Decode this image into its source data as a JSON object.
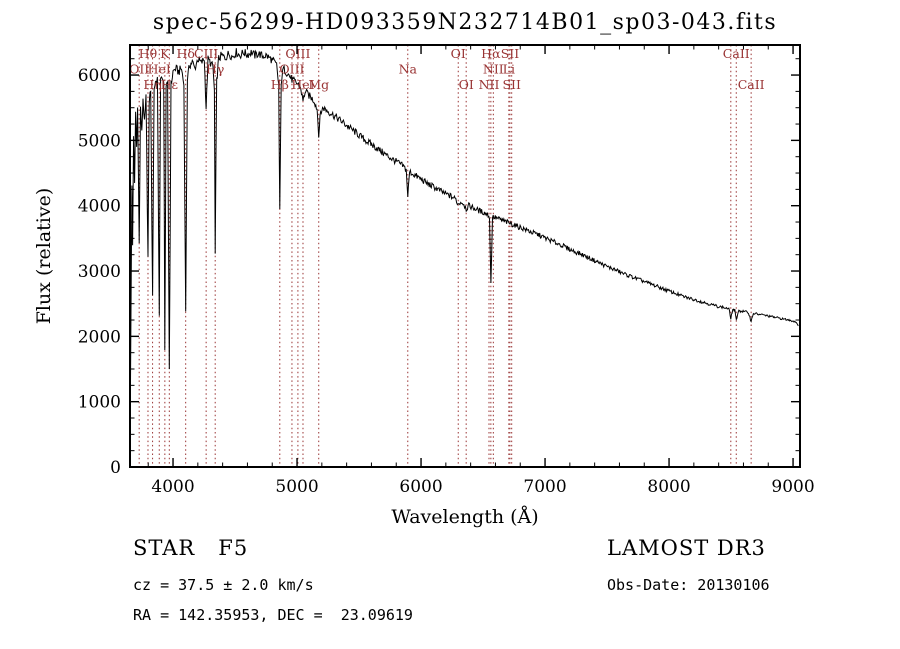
{
  "chart_data": {
    "type": "line",
    "title": "spec-56299-HD093359N232714B01_sp03-043.fits",
    "xlabel": "Wavelength (Å)",
    "ylabel": "Flux (relative)",
    "xlim": [
      3653,
      9056
    ],
    "ylim": [
      0,
      6460
    ],
    "xticks": [
      4000,
      5000,
      6000,
      7000,
      8000,
      9000
    ],
    "yticks": [
      0,
      1000,
      2000,
      3000,
      4000,
      5000,
      6000
    ],
    "grid": false,
    "line_color": "#000000",
    "feature_color": "#993333",
    "spectral_lines": [
      {
        "wl": 3727,
        "label": "OII",
        "row": 1
      },
      {
        "wl": 3798,
        "label": "Hθ",
        "row": 0
      },
      {
        "wl": 3835,
        "label": "Hη",
        "row": 2
      },
      {
        "wl": 3889,
        "label": "HeI",
        "row": 1
      },
      {
        "wl": 3934,
        "label": "K",
        "row": 0
      },
      {
        "wl": 3970,
        "label": "Hε",
        "row": 2
      },
      {
        "wl": 4102,
        "label": "Hδ",
        "row": 0
      },
      {
        "wl": 4267,
        "label": "CIII",
        "row": 0
      },
      {
        "wl": 4340,
        "label": "Hγ",
        "row": 1
      },
      {
        "wl": 4861,
        "label": "Hβ",
        "row": 2
      },
      {
        "wl": 4959,
        "label": "OIII",
        "row": 1
      },
      {
        "wl": 5007,
        "label": "OIII",
        "row": 0
      },
      {
        "wl": 5048,
        "label": "HeI",
        "row": 2
      },
      {
        "wl": 5175,
        "label": "Mg",
        "row": 2
      },
      {
        "wl": 5893,
        "label": "Na",
        "row": 1
      },
      {
        "wl": 6300,
        "label": "OI",
        "row": 0
      },
      {
        "wl": 6364,
        "label": "OI",
        "row": 2
      },
      {
        "wl": 6548,
        "label": "NII",
        "row": 2
      },
      {
        "wl": 6563,
        "label": "Hα",
        "row": 0
      },
      {
        "wl": 6583,
        "label": "NII",
        "row": 1
      },
      {
        "wl": 6708,
        "label": "Li",
        "row": 1
      },
      {
        "wl": 6717,
        "label": "SII",
        "row": 0
      },
      {
        "wl": 6731,
        "label": "SII",
        "row": 2
      },
      {
        "wl": 8498,
        "label": "",
        "row": 0
      },
      {
        "wl": 8542,
        "label": "CaII",
        "row": 0
      },
      {
        "wl": 8662,
        "label": "CaII",
        "row": 2
      }
    ],
    "points": [
      [
        3655,
        700
      ],
      [
        3662,
        2600
      ],
      [
        3668,
        4300
      ],
      [
        3674,
        3400
      ],
      [
        3682,
        5100
      ],
      [
        3690,
        4300
      ],
      [
        3698,
        5400
      ],
      [
        3706,
        4900
      ],
      [
        3714,
        5500
      ],
      [
        3727,
        3500
      ],
      [
        3738,
        5500
      ],
      [
        3748,
        5100
      ],
      [
        3758,
        5650
      ],
      [
        3770,
        5250
      ],
      [
        3782,
        5650
      ],
      [
        3798,
        3200
      ],
      [
        3808,
        5600
      ],
      [
        3820,
        5800
      ],
      [
        3835,
        2650
      ],
      [
        3847,
        5800
      ],
      [
        3860,
        5900
      ],
      [
        3874,
        5950
      ],
      [
        3889,
        2350
      ],
      [
        3900,
        5900
      ],
      [
        3914,
        6000
      ],
      [
        3925,
        5850
      ],
      [
        3934,
        1850
      ],
      [
        3944,
        5750
      ],
      [
        3956,
        5900
      ],
      [
        3970,
        1500
      ],
      [
        3984,
        5850
      ],
      [
        4000,
        6050
      ],
      [
        4020,
        6100
      ],
      [
        4045,
        6050
      ],
      [
        4068,
        6100
      ],
      [
        4088,
        5850
      ],
      [
        4102,
        2350
      ],
      [
        4116,
        5950
      ],
      [
        4134,
        6150
      ],
      [
        4155,
        6200
      ],
      [
        4175,
        6100
      ],
      [
        4200,
        6250
      ],
      [
        4228,
        6180
      ],
      [
        4252,
        6250
      ],
      [
        4267,
        5500
      ],
      [
        4282,
        6240
      ],
      [
        4302,
        6190
      ],
      [
        4322,
        6120
      ],
      [
        4334,
        5750
      ],
      [
        4340,
        3250
      ],
      [
        4352,
        5900
      ],
      [
        4368,
        6250
      ],
      [
        4392,
        6300
      ],
      [
        4420,
        6260
      ],
      [
        4450,
        6330
      ],
      [
        4480,
        6280
      ],
      [
        4510,
        6350
      ],
      [
        4540,
        6300
      ],
      [
        4570,
        6350
      ],
      [
        4600,
        6310
      ],
      [
        4630,
        6350
      ],
      [
        4660,
        6300
      ],
      [
        4690,
        6330
      ],
      [
        4720,
        6290
      ],
      [
        4750,
        6300
      ],
      [
        4780,
        6260
      ],
      [
        4810,
        6210
      ],
      [
        4835,
        6150
      ],
      [
        4852,
        5850
      ],
      [
        4861,
        3900
      ],
      [
        4872,
        5900
      ],
      [
        4890,
        6100
      ],
      [
        4912,
        6050
      ],
      [
        4935,
        6000
      ],
      [
        4959,
        5930
      ],
      [
        4980,
        5900
      ],
      [
        5007,
        5860
      ],
      [
        5030,
        5800
      ],
      [
        5048,
        5600
      ],
      [
        5065,
        5750
      ],
      [
        5090,
        5700
      ],
      [
        5115,
        5650
      ],
      [
        5140,
        5600
      ],
      [
        5162,
        5480
      ],
      [
        5175,
        5100
      ],
      [
        5190,
        5430
      ],
      [
        5212,
        5500
      ],
      [
        5240,
        5460
      ],
      [
        5270,
        5420
      ],
      [
        5305,
        5370
      ],
      [
        5340,
        5320
      ],
      [
        5380,
        5260
      ],
      [
        5420,
        5200
      ],
      [
        5460,
        5140
      ],
      [
        5500,
        5080
      ],
      [
        5545,
        5010
      ],
      [
        5590,
        4950
      ],
      [
        5635,
        4890
      ],
      [
        5680,
        4830
      ],
      [
        5725,
        4770
      ],
      [
        5770,
        4710
      ],
      [
        5815,
        4660
      ],
      [
        5858,
        4600
      ],
      [
        5880,
        4550
      ],
      [
        5893,
        4150
      ],
      [
        5908,
        4520
      ],
      [
        5940,
        4480
      ],
      [
        5980,
        4430
      ],
      [
        6020,
        4380
      ],
      [
        6060,
        4330
      ],
      [
        6100,
        4290
      ],
      [
        6145,
        4240
      ],
      [
        6190,
        4190
      ],
      [
        6235,
        4150
      ],
      [
        6280,
        4100
      ],
      [
        6300,
        4020
      ],
      [
        6320,
        4060
      ],
      [
        6345,
        4030
      ],
      [
        6364,
        3950
      ],
      [
        6385,
        4000
      ],
      [
        6420,
        3970
      ],
      [
        6460,
        3930
      ],
      [
        6500,
        3900
      ],
      [
        6535,
        3870
      ],
      [
        6552,
        3830
      ],
      [
        6563,
        2800
      ],
      [
        6576,
        3830
      ],
      [
        6610,
        3810
      ],
      [
        6650,
        3780
      ],
      [
        6690,
        3750
      ],
      [
        6730,
        3720
      ],
      [
        6770,
        3690
      ],
      [
        6810,
        3660
      ],
      [
        6850,
        3630
      ],
      [
        6895,
        3590
      ],
      [
        6940,
        3560
      ],
      [
        6985,
        3520
      ],
      [
        7030,
        3480
      ],
      [
        7080,
        3440
      ],
      [
        7130,
        3400
      ],
      [
        7180,
        3350
      ],
      [
        7235,
        3300
      ],
      [
        7290,
        3260
      ],
      [
        7345,
        3210
      ],
      [
        7400,
        3160
      ],
      [
        7455,
        3110
      ],
      [
        7510,
        3060
      ],
      [
        7565,
        3020
      ],
      [
        7620,
        2970
      ],
      [
        7675,
        2930
      ],
      [
        7730,
        2890
      ],
      [
        7785,
        2850
      ],
      [
        7840,
        2810
      ],
      [
        7895,
        2770
      ],
      [
        7950,
        2730
      ],
      [
        8005,
        2690
      ],
      [
        8060,
        2650
      ],
      [
        8115,
        2610
      ],
      [
        8170,
        2580
      ],
      [
        8225,
        2550
      ],
      [
        8280,
        2520
      ],
      [
        8335,
        2490
      ],
      [
        8390,
        2460
      ],
      [
        8445,
        2440
      ],
      [
        8482,
        2420
      ],
      [
        8498,
        2280
      ],
      [
        8514,
        2410
      ],
      [
        8530,
        2400
      ],
      [
        8542,
        2240
      ],
      [
        8558,
        2390
      ],
      [
        8585,
        2385
      ],
      [
        8615,
        2375
      ],
      [
        8640,
        2365
      ],
      [
        8662,
        2230
      ],
      [
        8680,
        2355
      ],
      [
        8715,
        2340
      ],
      [
        8750,
        2330
      ],
      [
        8790,
        2315
      ],
      [
        8830,
        2300
      ],
      [
        8870,
        2285
      ],
      [
        8910,
        2270
      ],
      [
        8950,
        2255
      ],
      [
        8990,
        2240
      ],
      [
        9020,
        2225
      ],
      [
        9045,
        2170
      ]
    ]
  },
  "footer": {
    "class_line": "STAR   F5",
    "survey": "LAMOST DR3",
    "cz_line": "cz = 37.5 ± 2.0 km/s",
    "obs_date_line": "Obs-Date: 20130106",
    "radec_line": "RA = 142.35953, DEC =  23.09619"
  }
}
